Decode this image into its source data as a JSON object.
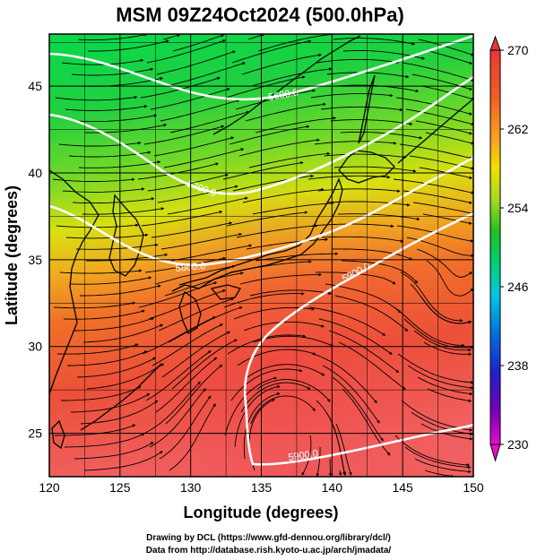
{
  "title": "MSM 09Z24Oct2024 (500.0hPa)",
  "axes": {
    "xlabel": "Longitude (degrees)",
    "ylabel": "Latitude  (degrees)",
    "xlim": [
      120,
      150
    ],
    "ylim": [
      22.5,
      48
    ],
    "xticks": [
      120,
      125,
      130,
      135,
      140,
      145,
      150
    ],
    "yticks": [
      25,
      30,
      35,
      40,
      45
    ],
    "grid": true
  },
  "colorbar": {
    "range": [
      230,
      270
    ],
    "ticks": [
      "270",
      "262",
      "254",
      "246",
      "238",
      "230"
    ],
    "colors": [
      "#e4109a",
      "#7a00b8",
      "#2020c8",
      "#0070e0",
      "#00c8e0",
      "#00d080",
      "#20c020",
      "#a8d820",
      "#f0e000",
      "#f8a020",
      "#f06020",
      "#e83838"
    ]
  },
  "contours": {
    "labels": [
      "5600.0",
      "5700.0",
      "5800.0",
      "5900.0"
    ]
  },
  "credits": {
    "line1": "Drawing by DCL (https://www.gfd-dennou.org/library/dcl/)",
    "line2": "Data from http://database.rish.kyoto-u.ac.jp/arch/jmadata/"
  }
}
